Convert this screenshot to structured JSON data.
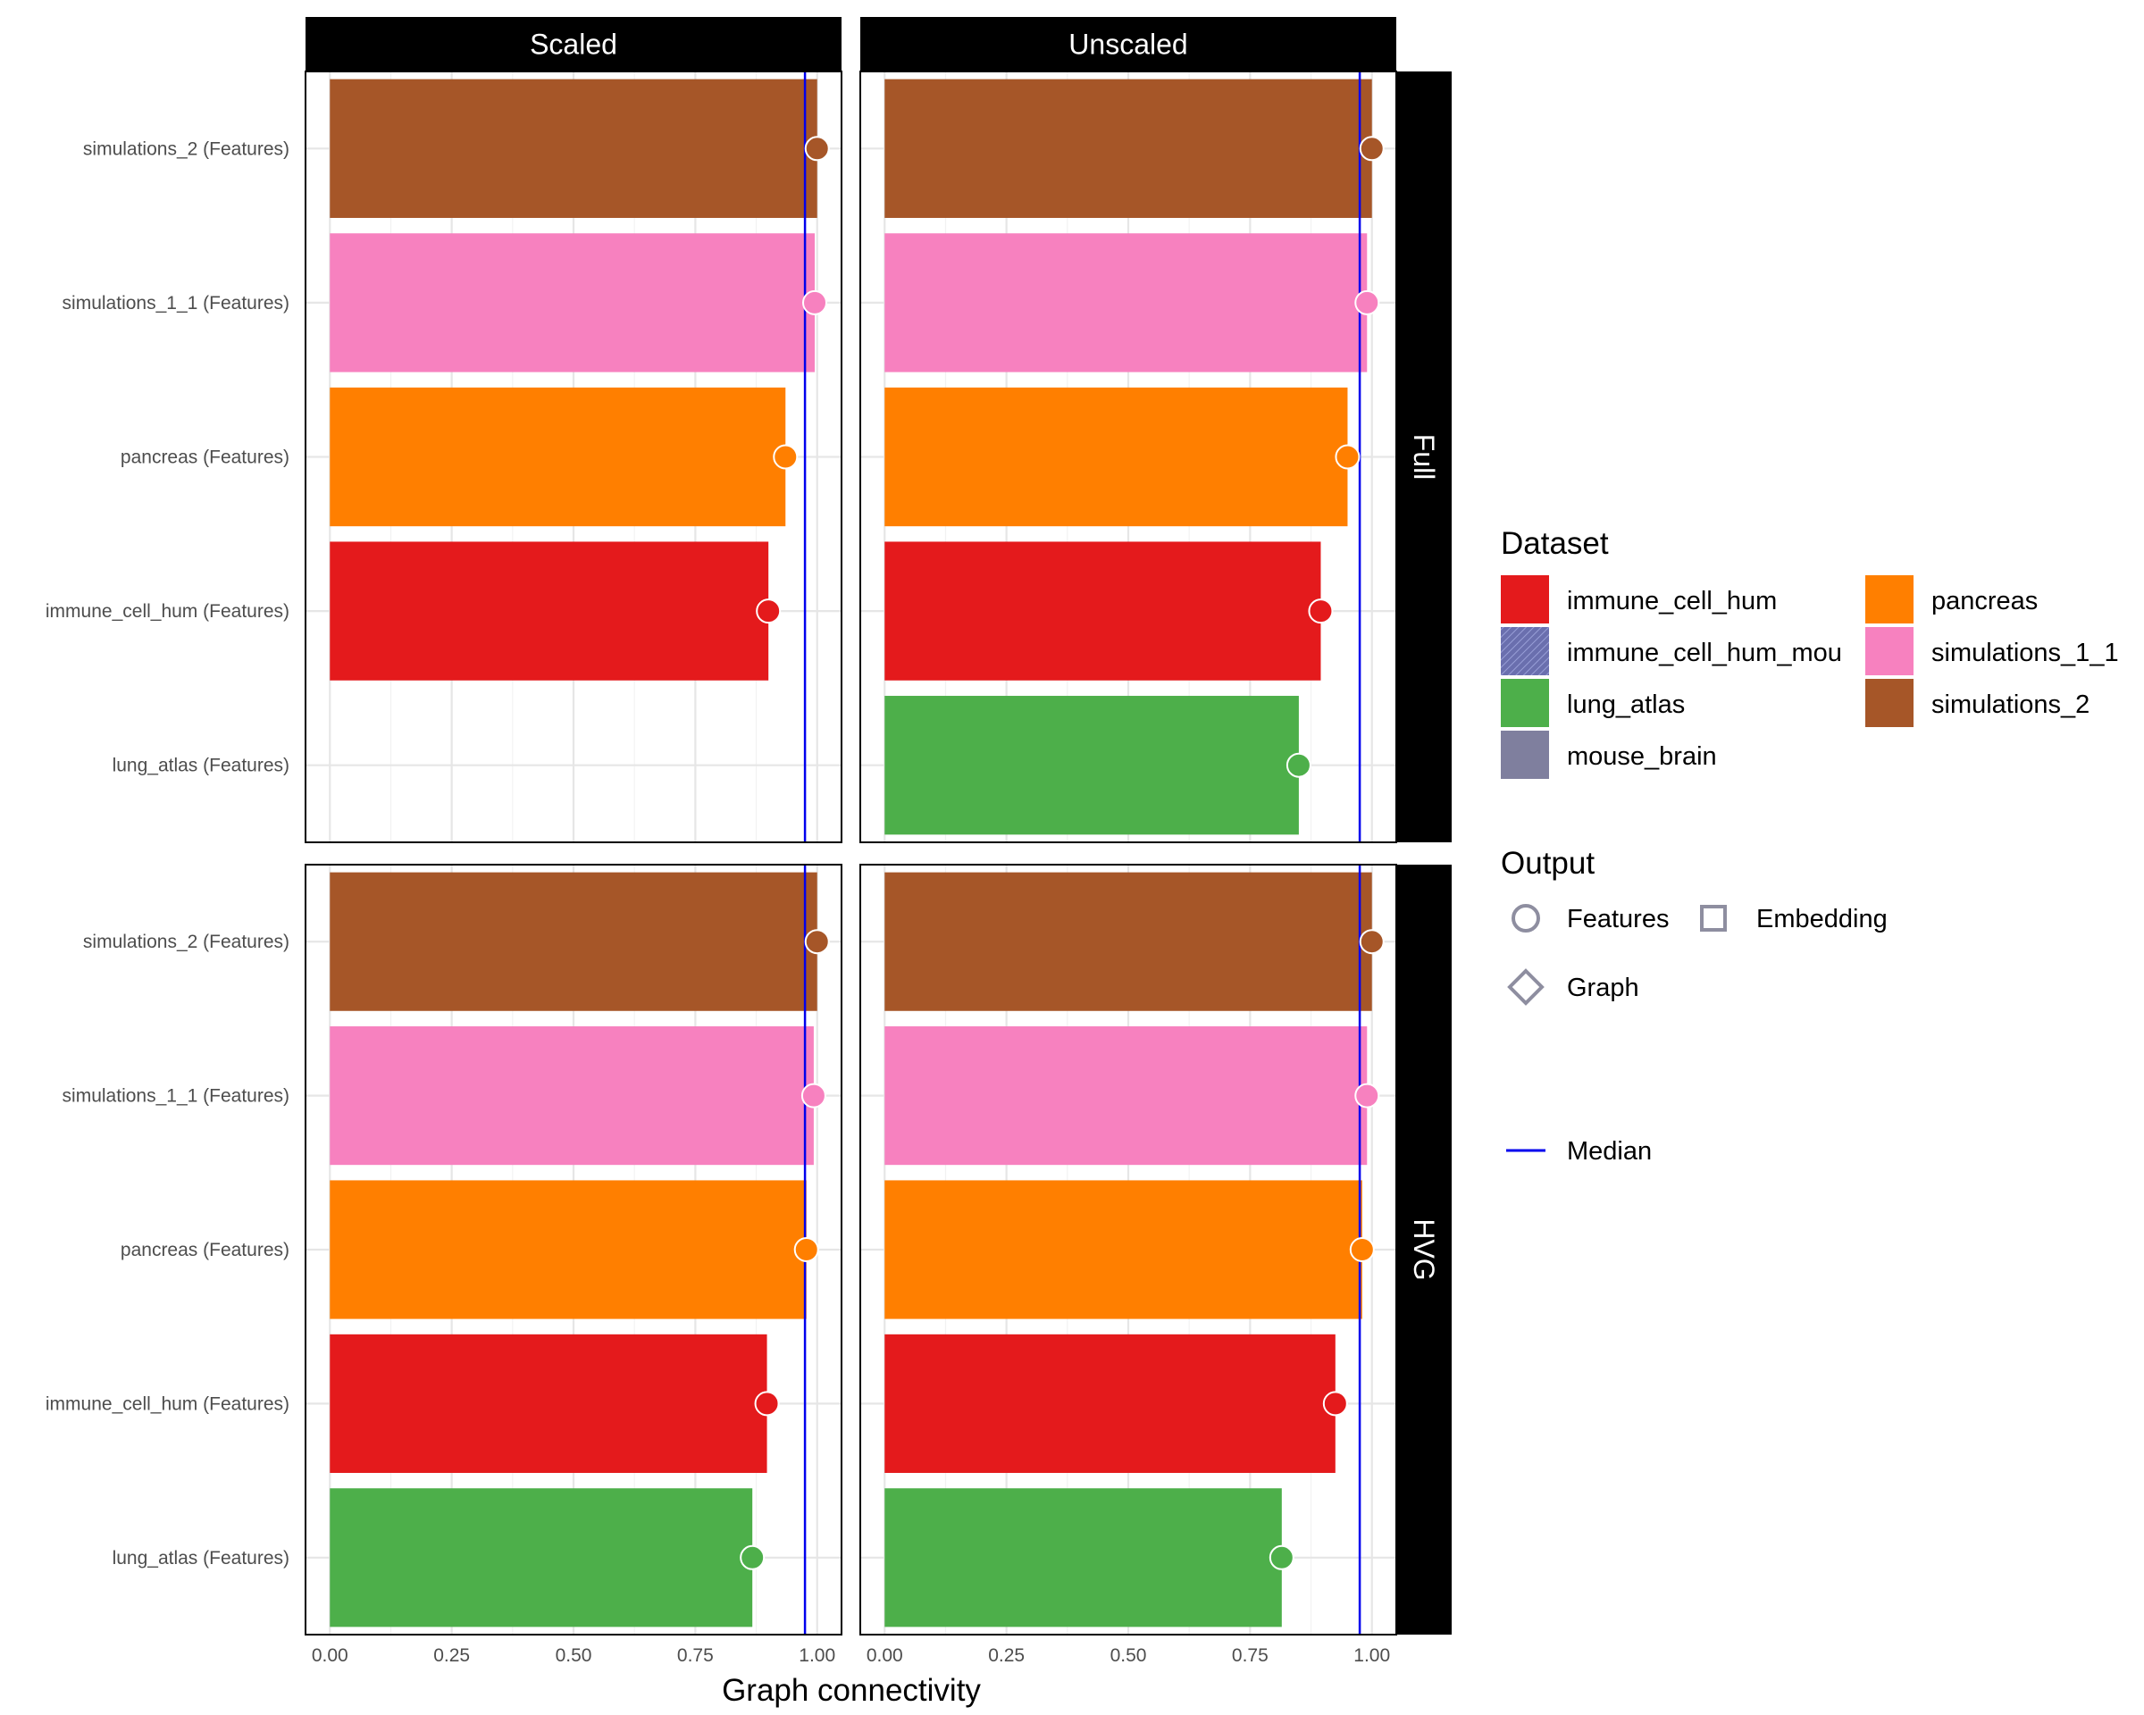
{
  "chart_data": {
    "type": "bar",
    "orientation": "horizontal",
    "xlabel": "Graph connectivity",
    "ylabel": "",
    "xlim": [
      -0.05,
      1.05
    ],
    "xticks": [
      0.0,
      0.25,
      0.5,
      0.75,
      1.0
    ],
    "xtick_labels": [
      "0.00",
      "0.25",
      "0.50",
      "0.75",
      "1.00"
    ],
    "grid": true,
    "columns": [
      "Scaled",
      "Unscaled"
    ],
    "rows": [
      "Full",
      "HVG"
    ],
    "categories": [
      "simulations_2 (Features)",
      "simulations_1_1 (Features)",
      "pancreas (Features)",
      "immune_cell_hum (Features)",
      "lung_atlas (Features)"
    ],
    "category_dataset": [
      "simulations_2",
      "simulations_1_1",
      "pancreas",
      "immune_cell_hum",
      "lung_atlas"
    ],
    "category_output": [
      "Features",
      "Features",
      "Features",
      "Features",
      "Features"
    ],
    "panels": [
      {
        "column": "Scaled",
        "row": "Full",
        "values": [
          1.0,
          0.995,
          0.935,
          0.9,
          null
        ],
        "median": 0.975
      },
      {
        "column": "Unscaled",
        "row": "Full",
        "values": [
          1.0,
          0.99,
          0.95,
          0.895,
          0.85
        ],
        "median": 0.975
      },
      {
        "column": "Scaled",
        "row": "HVG",
        "values": [
          1.0,
          0.993,
          0.978,
          0.897,
          0.867
        ],
        "median": 0.975
      },
      {
        "column": "Unscaled",
        "row": "HVG",
        "values": [
          1.0,
          0.99,
          0.98,
          0.925,
          0.815
        ],
        "median": 0.975
      }
    ],
    "median_line_color": "#0000EE",
    "legend": {
      "position": "right",
      "dataset_title": "Dataset",
      "datasets": [
        {
          "name": "immune_cell_hum",
          "color": "#E41A1C"
        },
        {
          "name": "immune_cell_hum_mou",
          "color": "#6A6FAE",
          "pattern": true
        },
        {
          "name": "lung_atlas",
          "color": "#4DAF4A"
        },
        {
          "name": "mouse_brain",
          "color": "#7F7F9E"
        },
        {
          "name": "pancreas",
          "color": "#FF7F00"
        },
        {
          "name": "simulations_1_1",
          "color": "#F781BF"
        },
        {
          "name": "simulations_2",
          "color": "#A65628"
        }
      ],
      "output_title": "Output",
      "outputs": [
        {
          "name": "Features",
          "shape": "circle"
        },
        {
          "name": "Embedding",
          "shape": "square"
        },
        {
          "name": "Graph",
          "shape": "diamond"
        }
      ],
      "median_label": "Median"
    }
  }
}
